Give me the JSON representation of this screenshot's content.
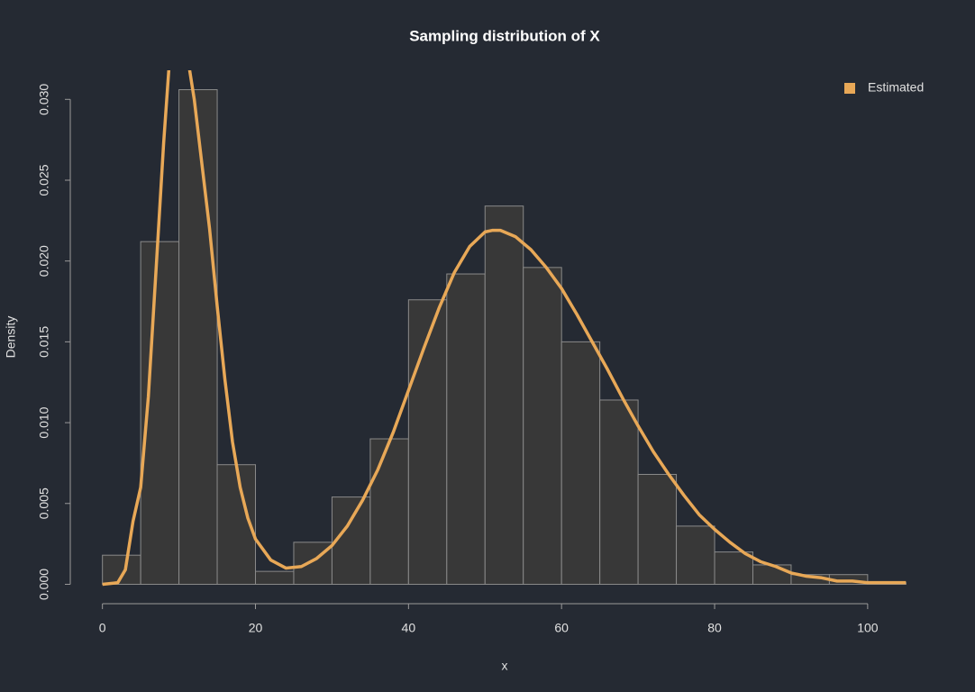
{
  "chart_data": {
    "type": "histogram",
    "title": "Sampling distribution of X",
    "x_label": "x",
    "y_label": "Density",
    "bins": [
      0,
      5,
      10,
      15,
      20,
      25,
      30,
      35,
      40,
      45,
      50,
      55,
      60,
      65,
      70,
      75,
      80,
      85,
      90,
      95,
      100,
      105
    ],
    "values": [
      0.0018,
      0.0212,
      0.0306,
      0.0074,
      0.0008,
      0.0026,
      0.0054,
      0.009,
      0.0176,
      0.0192,
      0.0234,
      0.0196,
      0.015,
      0.0114,
      0.0068,
      0.0036,
      0.002,
      0.0012,
      0.0006,
      0.0006,
      0.0001
    ],
    "bar_color": "#383838",
    "bar_edge_color": "#8a8a8a",
    "xlim": [
      -4.2,
      109.2
    ],
    "ylim": [
      -0.0012,
      0.0318
    ],
    "xticks": [
      0,
      20,
      40,
      60,
      80,
      100
    ],
    "yticks": [
      {
        "value": 0,
        "label": "0.000"
      },
      {
        "value": 0.005,
        "label": "0.005"
      },
      {
        "value": 0.01,
        "label": "0.010"
      },
      {
        "value": 0.015,
        "label": "0.015"
      },
      {
        "value": 0.02,
        "label": "0.020"
      },
      {
        "value": 0.025,
        "label": "0.025"
      },
      {
        "value": 0.03,
        "label": "0.030"
      }
    ],
    "legend": "topright",
    "series": [
      {
        "name": "Estimated",
        "type": "line",
        "color": "#e8a857",
        "x": [
          0,
          2,
          3,
          4,
          5,
          6,
          7,
          8,
          9,
          10,
          11,
          12,
          13,
          14,
          15,
          16,
          17,
          18,
          19,
          20,
          22,
          24,
          26,
          28,
          30,
          32,
          34,
          36,
          38,
          40,
          42,
          44,
          46,
          48,
          50,
          51,
          52,
          54,
          56,
          58,
          60,
          62,
          64,
          66,
          68,
          70,
          72,
          74,
          76,
          78,
          80,
          82,
          84,
          86,
          88,
          90,
          92,
          94,
          96,
          98,
          100,
          102,
          105
        ],
        "values": [
          0,
          0.0001,
          0.0009,
          0.0039,
          0.006,
          0.0116,
          0.0194,
          0.0273,
          0.034,
          0.035,
          0.033,
          0.03,
          0.026,
          0.022,
          0.0172,
          0.0127,
          0.0088,
          0.006,
          0.0041,
          0.0028,
          0.0015,
          0.001,
          0.0011,
          0.0016,
          0.0024,
          0.0036,
          0.0052,
          0.0071,
          0.0094,
          0.012,
          0.0146,
          0.0171,
          0.0193,
          0.0209,
          0.0218,
          0.0219,
          0.0219,
          0.0215,
          0.0207,
          0.0196,
          0.0183,
          0.0167,
          0.015,
          0.0133,
          0.0115,
          0.0098,
          0.0082,
          0.0068,
          0.0055,
          0.0043,
          0.0034,
          0.0026,
          0.0019,
          0.0014,
          0.0011,
          0.0007,
          0.0005,
          0.0004,
          0.0002,
          0.0002,
          0.0001,
          0.0001,
          0.0001
        ]
      }
    ]
  }
}
